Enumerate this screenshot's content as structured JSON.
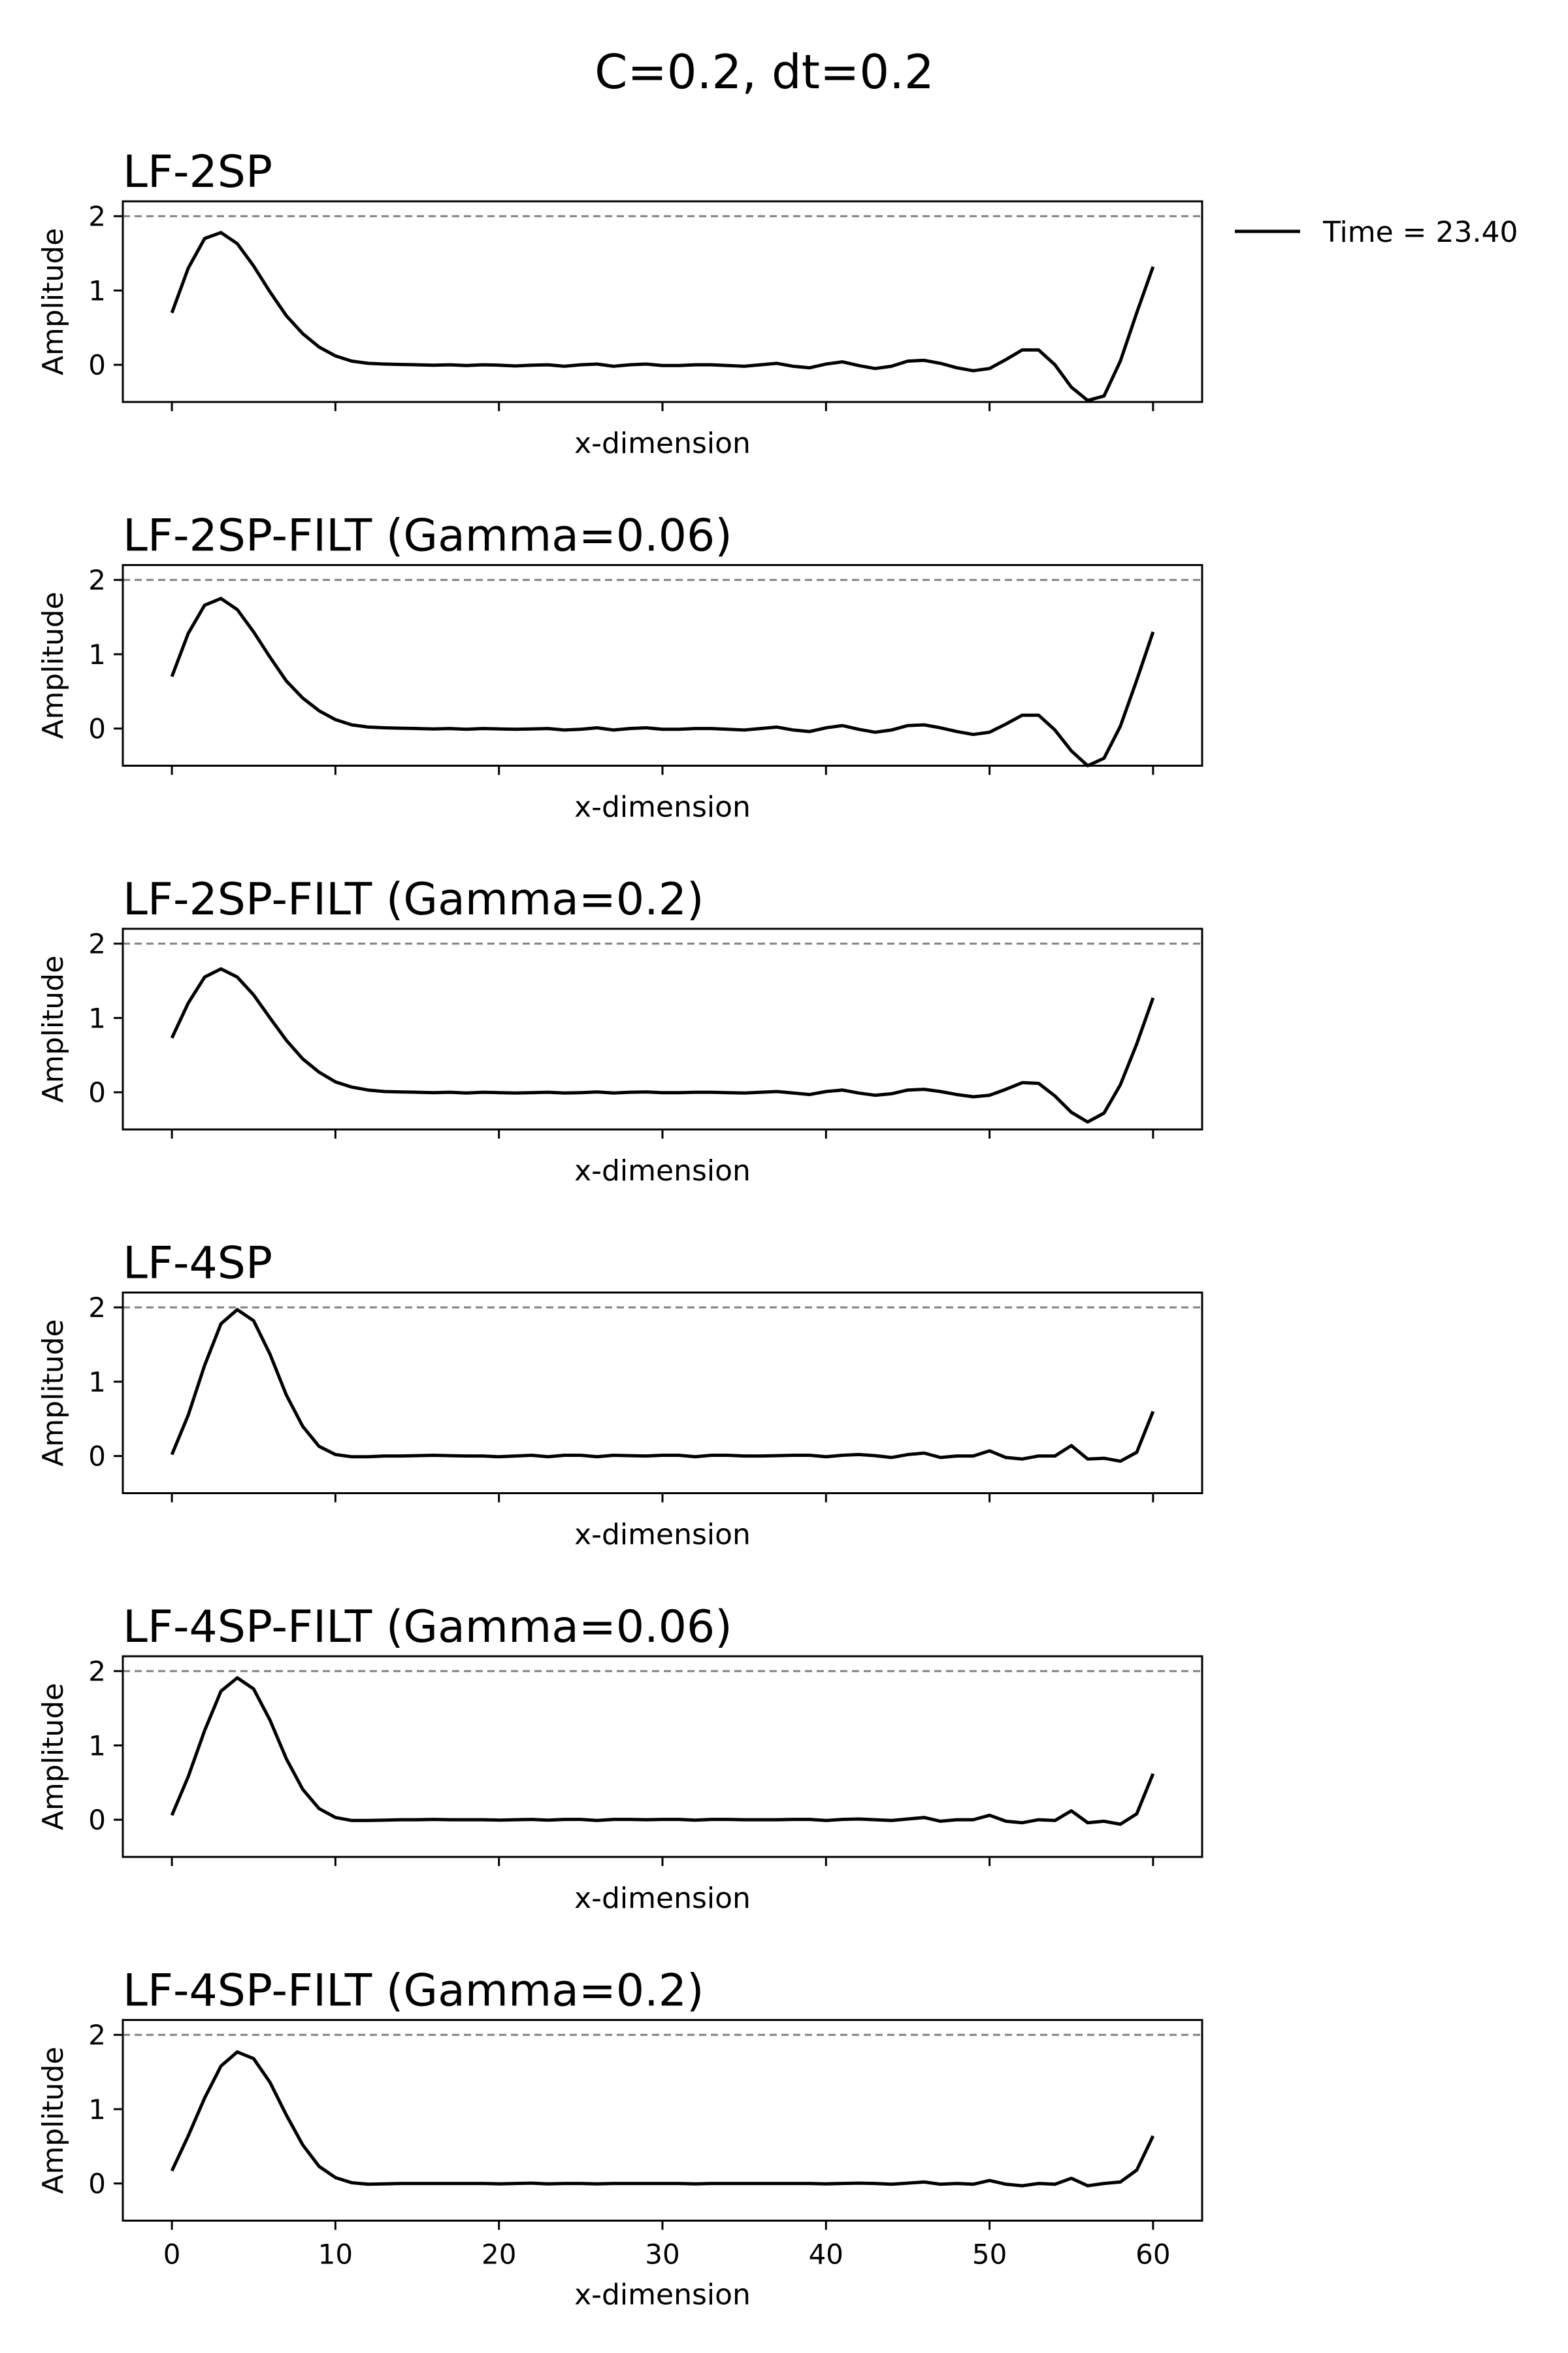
{
  "figure": {
    "title": "C=0.2, dt=0.2"
  },
  "legend": {
    "label": "Time = 23.40",
    "line_color": "#000000"
  },
  "colors": {
    "series": "#000000",
    "reference": "#808080",
    "frame": "#000000"
  },
  "chart_data": [
    {
      "type": "line",
      "title": "LF-2SP",
      "xlabel": "x-dimension",
      "ylabel": "Amplitude",
      "xlim": [
        -3,
        63
      ],
      "ylim": [
        -0.5,
        2.2
      ],
      "xticks": [
        0,
        10,
        20,
        30,
        40,
        50,
        60
      ],
      "yticks": [
        0,
        1,
        2
      ],
      "show_xtick_labels": false,
      "reference_line": 2,
      "series": [
        {
          "name": "Time = 23.40",
          "x": [
            0,
            1,
            2,
            3,
            4,
            5,
            6,
            7,
            8,
            9,
            10,
            11,
            12,
            13,
            14,
            15,
            16,
            17,
            18,
            19,
            20,
            21,
            22,
            23,
            24,
            25,
            26,
            27,
            28,
            29,
            30,
            31,
            32,
            33,
            34,
            35,
            36,
            37,
            38,
            39,
            40,
            41,
            42,
            43,
            44,
            45,
            46,
            47,
            48,
            49,
            50,
            51,
            52,
            53,
            54,
            55,
            56,
            57,
            58,
            59,
            60
          ],
          "values": [
            0.7,
            1.3,
            1.7,
            1.78,
            1.63,
            1.33,
            0.98,
            0.66,
            0.42,
            0.24,
            0.12,
            0.05,
            0.02,
            0.01,
            0.005,
            0,
            -0.005,
            0,
            -0.01,
            0,
            -0.005,
            -0.015,
            -0.005,
            0,
            -0.02,
            0,
            0.01,
            -0.02,
            0,
            0.01,
            -0.01,
            -0.01,
            0,
            0,
            -0.01,
            -0.02,
            0,
            0.02,
            -0.02,
            -0.04,
            0.01,
            0.04,
            -0.01,
            -0.05,
            -0.02,
            0.05,
            0.06,
            0.02,
            -0.04,
            -0.08,
            -0.05,
            0.07,
            0.2,
            0.2,
            0,
            -0.3,
            -0.48,
            -0.42,
            0.05,
            0.7,
            1.32
          ]
        }
      ]
    },
    {
      "type": "line",
      "title": "LF-2SP-FILT (Gamma=0.06)",
      "xlabel": "x-dimension",
      "ylabel": "Amplitude",
      "xlim": [
        -3,
        63
      ],
      "ylim": [
        -0.5,
        2.2
      ],
      "xticks": [
        0,
        10,
        20,
        30,
        40,
        50,
        60
      ],
      "yticks": [
        0,
        1,
        2
      ],
      "show_xtick_labels": false,
      "reference_line": 2,
      "series": [
        {
          "name": "Time = 23.40",
          "x": [
            0,
            1,
            2,
            3,
            4,
            5,
            6,
            7,
            8,
            9,
            10,
            11,
            12,
            13,
            14,
            15,
            16,
            17,
            18,
            19,
            20,
            21,
            22,
            23,
            24,
            25,
            26,
            27,
            28,
            29,
            30,
            31,
            32,
            33,
            34,
            35,
            36,
            37,
            38,
            39,
            40,
            41,
            42,
            43,
            44,
            45,
            46,
            47,
            48,
            49,
            50,
            51,
            52,
            53,
            54,
            55,
            56,
            57,
            58,
            59,
            60
          ],
          "values": [
            0.7,
            1.28,
            1.66,
            1.75,
            1.6,
            1.3,
            0.96,
            0.64,
            0.41,
            0.24,
            0.12,
            0.05,
            0.02,
            0.01,
            0.005,
            0,
            -0.005,
            0,
            -0.01,
            0,
            -0.005,
            -0.01,
            -0.005,
            0,
            -0.02,
            -0.01,
            0.01,
            -0.02,
            0,
            0.01,
            -0.01,
            -0.01,
            0,
            0,
            -0.01,
            -0.02,
            0,
            0.02,
            -0.02,
            -0.04,
            0.01,
            0.04,
            -0.01,
            -0.05,
            -0.02,
            0.04,
            0.05,
            0.01,
            -0.04,
            -0.08,
            -0.05,
            0.06,
            0.18,
            0.18,
            -0.02,
            -0.3,
            -0.5,
            -0.4,
            0.03,
            0.65,
            1.3
          ]
        }
      ]
    },
    {
      "type": "line",
      "title": "LF-2SP-FILT (Gamma=0.2)",
      "xlabel": "x-dimension",
      "ylabel": "Amplitude",
      "xlim": [
        -3,
        63
      ],
      "ylim": [
        -0.5,
        2.2
      ],
      "xticks": [
        0,
        10,
        20,
        30,
        40,
        50,
        60
      ],
      "yticks": [
        0,
        1,
        2
      ],
      "show_xtick_labels": false,
      "reference_line": 2,
      "series": [
        {
          "name": "Time = 23.40",
          "x": [
            0,
            1,
            2,
            3,
            4,
            5,
            6,
            7,
            8,
            9,
            10,
            11,
            12,
            13,
            14,
            15,
            16,
            17,
            18,
            19,
            20,
            21,
            22,
            23,
            24,
            25,
            26,
            27,
            28,
            29,
            30,
            31,
            32,
            33,
            34,
            35,
            36,
            37,
            38,
            39,
            40,
            41,
            42,
            43,
            44,
            45,
            46,
            47,
            48,
            49,
            50,
            51,
            52,
            53,
            54,
            55,
            56,
            57,
            58,
            59,
            60
          ],
          "values": [
            0.73,
            1.2,
            1.55,
            1.66,
            1.55,
            1.31,
            1,
            0.7,
            0.45,
            0.27,
            0.14,
            0.07,
            0.03,
            0.01,
            0.005,
            0,
            -0.005,
            0,
            -0.01,
            0,
            -0.005,
            -0.01,
            -0.005,
            0,
            -0.01,
            -0.005,
            0.005,
            -0.01,
            0,
            0.005,
            -0.005,
            -0.005,
            0,
            0,
            -0.005,
            -0.01,
            0,
            0.01,
            -0.01,
            -0.03,
            0.01,
            0.03,
            -0.01,
            -0.04,
            -0.02,
            0.03,
            0.04,
            0.01,
            -0.03,
            -0.06,
            -0.04,
            0.04,
            0.13,
            0.12,
            -0.05,
            -0.27,
            -0.4,
            -0.28,
            0.1,
            0.65,
            1.27
          ]
        }
      ]
    },
    {
      "type": "line",
      "title": "LF-4SP",
      "xlabel": "x-dimension",
      "ylabel": "Amplitude",
      "xlim": [
        -3,
        63
      ],
      "ylim": [
        -0.5,
        2.2
      ],
      "xticks": [
        0,
        10,
        20,
        30,
        40,
        50,
        60
      ],
      "yticks": [
        0,
        1,
        2
      ],
      "show_xtick_labels": false,
      "reference_line": 2,
      "series": [
        {
          "name": "Time = 23.40",
          "x": [
            0,
            1,
            2,
            3,
            4,
            5,
            6,
            7,
            8,
            9,
            10,
            11,
            12,
            13,
            14,
            15,
            16,
            17,
            18,
            19,
            20,
            21,
            22,
            23,
            24,
            25,
            26,
            27,
            28,
            29,
            30,
            31,
            32,
            33,
            34,
            35,
            36,
            37,
            38,
            39,
            40,
            41,
            42,
            43,
            44,
            45,
            46,
            47,
            48,
            49,
            50,
            51,
            52,
            53,
            54,
            55,
            56,
            57,
            58,
            59,
            60
          ],
          "values": [
            0.02,
            0.55,
            1.22,
            1.78,
            1.97,
            1.82,
            1.37,
            0.82,
            0.4,
            0.13,
            0.02,
            -0.01,
            -0.01,
            0,
            0,
            0.005,
            0.01,
            0.005,
            0,
            0,
            -0.01,
            0,
            0.01,
            -0.01,
            0.01,
            0.01,
            -0.01,
            0.01,
            0.005,
            0,
            0.01,
            0.01,
            -0.01,
            0.01,
            0.01,
            0,
            0,
            0.005,
            0.01,
            0.01,
            -0.01,
            0.01,
            0.02,
            0.005,
            -0.02,
            0.02,
            0.04,
            -0.02,
            0,
            0,
            0.07,
            -0.02,
            -0.04,
            0,
            0,
            0.14,
            -0.04,
            -0.03,
            -0.07,
            0.05,
            0.6
          ]
        }
      ]
    },
    {
      "type": "line",
      "title": "LF-4SP-FILT (Gamma=0.06)",
      "xlabel": "x-dimension",
      "ylabel": "Amplitude",
      "xlim": [
        -3,
        63
      ],
      "ylim": [
        -0.5,
        2.2
      ],
      "xticks": [
        0,
        10,
        20,
        30,
        40,
        50,
        60
      ],
      "yticks": [
        0,
        1,
        2
      ],
      "show_xtick_labels": false,
      "reference_line": 2,
      "series": [
        {
          "name": "Time = 23.40",
          "x": [
            0,
            1,
            2,
            3,
            4,
            5,
            6,
            7,
            8,
            9,
            10,
            11,
            12,
            13,
            14,
            15,
            16,
            17,
            18,
            19,
            20,
            21,
            22,
            23,
            24,
            25,
            26,
            27,
            28,
            29,
            30,
            31,
            32,
            33,
            34,
            35,
            36,
            37,
            38,
            39,
            40,
            41,
            42,
            43,
            44,
            45,
            46,
            47,
            48,
            49,
            50,
            51,
            52,
            53,
            54,
            55,
            56,
            57,
            58,
            59,
            60
          ],
          "values": [
            0.06,
            0.58,
            1.2,
            1.73,
            1.91,
            1.76,
            1.34,
            0.82,
            0.41,
            0.15,
            0.03,
            -0.01,
            -0.01,
            -0.005,
            0,
            0,
            0.005,
            0,
            0,
            0,
            -0.005,
            0,
            0.005,
            -0.005,
            0.005,
            0.005,
            -0.01,
            0.005,
            0.005,
            0,
            0.005,
            0.005,
            -0.005,
            0.005,
            0.005,
            0,
            0,
            0,
            0.005,
            0.005,
            -0.01,
            0.005,
            0.01,
            0,
            -0.01,
            0.01,
            0.03,
            -0.02,
            0,
            0,
            0.06,
            -0.02,
            -0.04,
            0,
            -0.01,
            0.12,
            -0.04,
            -0.02,
            -0.06,
            0.08,
            0.62
          ]
        }
      ]
    },
    {
      "type": "line",
      "title": "LF-4SP-FILT (Gamma=0.2)",
      "xlabel": "x-dimension",
      "ylabel": "Amplitude",
      "xlim": [
        -3,
        63
      ],
      "ylim": [
        -0.5,
        2.2
      ],
      "xticks": [
        0,
        10,
        20,
        30,
        40,
        50,
        60
      ],
      "yticks": [
        0,
        1,
        2
      ],
      "show_xtick_labels": true,
      "reference_line": 2,
      "series": [
        {
          "name": "Time = 23.40",
          "x": [
            0,
            1,
            2,
            3,
            4,
            5,
            6,
            7,
            8,
            9,
            10,
            11,
            12,
            13,
            14,
            15,
            16,
            17,
            18,
            19,
            20,
            21,
            22,
            23,
            24,
            25,
            26,
            27,
            28,
            29,
            30,
            31,
            32,
            33,
            34,
            35,
            36,
            37,
            38,
            39,
            40,
            41,
            42,
            43,
            44,
            45,
            46,
            47,
            48,
            49,
            50,
            51,
            52,
            53,
            54,
            55,
            56,
            57,
            58,
            59,
            60
          ],
          "values": [
            0.17,
            0.64,
            1.15,
            1.58,
            1.77,
            1.68,
            1.36,
            0.92,
            0.52,
            0.23,
            0.08,
            0.01,
            -0.01,
            -0.005,
            0,
            0,
            0,
            0,
            0,
            0,
            -0.005,
            0,
            0.005,
            -0.005,
            0,
            0,
            -0.005,
            0,
            0,
            0,
            0,
            0,
            -0.005,
            0,
            0,
            0,
            0,
            0,
            0,
            0,
            -0.005,
            0,
            0.005,
            0,
            -0.01,
            0.005,
            0.02,
            -0.01,
            0,
            -0.01,
            0.04,
            -0.01,
            -0.03,
            0,
            -0.01,
            0.07,
            -0.03,
            0,
            0.02,
            0.18,
            0.64
          ]
        }
      ]
    }
  ]
}
